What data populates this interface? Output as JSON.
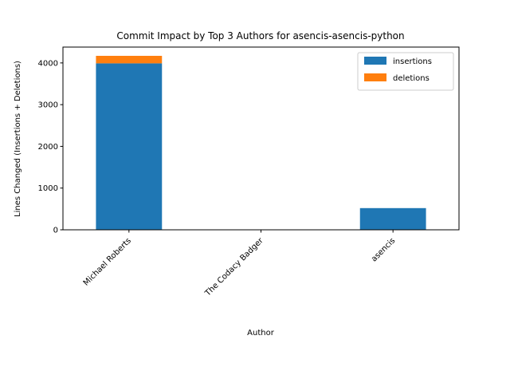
{
  "chart_data": {
    "type": "bar",
    "stacked": true,
    "title": "Commit Impact by Top 3 Authors for asencis-asencis-python",
    "xlabel": "Author",
    "ylabel": "Lines Changed (Insertions + Deletions)",
    "categories": [
      "Michael Roberts",
      "The Codacy Badger",
      "asencis"
    ],
    "series": [
      {
        "name": "insertions",
        "color": "#1f77b4",
        "values": [
          3990,
          1,
          520
        ]
      },
      {
        "name": "deletions",
        "color": "#ff7f0e",
        "values": [
          180,
          1,
          0
        ]
      }
    ],
    "ylim": [
      0,
      4380
    ],
    "yticks": [
      0,
      1000,
      2000,
      3000,
      4000
    ],
    "grid": false,
    "legend_position": "top-right"
  }
}
